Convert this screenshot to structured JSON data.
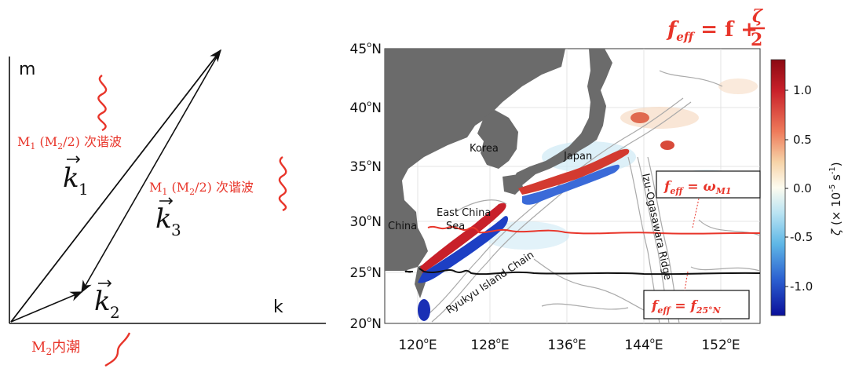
{
  "panel_left": {
    "axis_m": "m",
    "axis_k": "k",
    "vec_k1": "k",
    "vec_k1_sub": "1",
    "vec_k2": "k",
    "vec_k2_sub": "2",
    "vec_k3": "k",
    "vec_k3_sub": "3",
    "label_m1_a": "M",
    "label_m1_a_sub1": "1",
    "label_m1_a_mid": " (M",
    "label_m1_a_sub2": "2",
    "label_m1_a_tail": "/2) 次谐波",
    "label_m1_b": "M",
    "label_m1_b_sub1": "1",
    "label_m1_b_mid": " (M",
    "label_m1_b_sub2": "2",
    "label_m1_b_tail": "/2) 次谐波",
    "label_m2": "M",
    "label_m2_sub": "2",
    "label_m2_tail": "内潮",
    "accent_color": "#e8352a"
  },
  "panel_right": {
    "formula_title": "f_eff = f + ζ/2",
    "formula_title_lhs": "f",
    "formula_title_lhs_sub": "eff",
    "formula_title_rhs": " = f + ",
    "formula_title_num": "ζ",
    "formula_title_den": "2",
    "box_upper_f": "f",
    "box_upper_sub": "eff",
    "box_upper_eq": " = ω",
    "box_upper_rhs_sub": "M1",
    "box_lower_f": "f",
    "box_lower_sub": "eff",
    "box_lower_eq": " = f",
    "box_lower_rhs_sub": "25°N",
    "lat_ticks": [
      "45",
      "40",
      "35",
      "30",
      "25",
      "20"
    ],
    "lat_suffix": "N",
    "lon_ticks": [
      "120",
      "128",
      "136",
      "144",
      "152"
    ],
    "lon_suffix": "E",
    "deg": "o",
    "colorbar_ticks": [
      "1.0",
      "0.5",
      "0.0",
      "-0.5",
      "-1.0"
    ],
    "colorbar_label_zeta": "ζ",
    "colorbar_label_units": "(× 10",
    "colorbar_label_exp": "-5",
    "colorbar_label_tail": "s",
    "colorbar_label_tail_exp": "-1",
    "colorbar_label_close": ")",
    "place_korea": "Korea",
    "place_japan": "Japan",
    "place_china": "China",
    "place_ecs_1": "East China",
    "place_ecs_2": "Sea",
    "place_ryukyu": "Ryukyu Island Chain",
    "place_izu": "Izu-Ogasawara Ridge",
    "accent_color": "#e8352a"
  }
}
